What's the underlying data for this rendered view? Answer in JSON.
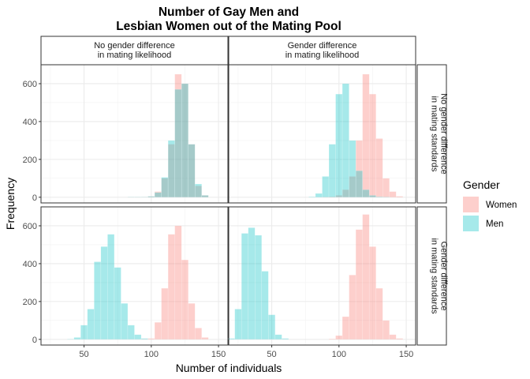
{
  "chart_data": {
    "type": "bar",
    "chart_kind": "faceted histogram",
    "title_lines": [
      "Number of Gay Men and",
      "Lesbian Women out of the Mating Pool"
    ],
    "xlabel": "Number of individuals",
    "ylabel": "Frequency",
    "xlim": [
      18,
      157
    ],
    "ylim": [
      -30,
      700
    ],
    "x_ticks": [
      50,
      100,
      150
    ],
    "y_ticks": [
      0,
      200,
      400,
      600
    ],
    "bin_width": 5,
    "grid": true,
    "legend": {
      "title": "Gender",
      "position": "right",
      "entries": [
        {
          "label": "Women",
          "color": "#F8766D"
        },
        {
          "label": "Men",
          "color": "#00BFC4"
        }
      ]
    },
    "col_strips": [
      [
        "No gender difference",
        "in mating likelihood"
      ],
      [
        "Gender difference",
        "in mating likelihood"
      ]
    ],
    "row_strips": [
      [
        "No gender difference",
        "in mating standards"
      ],
      [
        "Gender difference",
        "in mating standards"
      ]
    ],
    "panels": [
      {
        "row": 0,
        "col": 0,
        "series": [
          {
            "name": "Women",
            "bin_centers": [
              85,
              90,
              95,
              100,
              105,
              110,
              115,
              120,
              125,
              130,
              135,
              140
            ],
            "counts": [
              1,
              1,
              2,
              5,
              30,
              100,
              280,
              650,
              600,
              280,
              60,
              10
            ]
          },
          {
            "name": "Men",
            "bin_centers": [
              85,
              90,
              95,
              100,
              105,
              110,
              115,
              120,
              125,
              130,
              135,
              140
            ],
            "counts": [
              1,
              1,
              2,
              5,
              25,
              105,
              300,
              570,
              600,
              280,
              70,
              10
            ]
          }
        ]
      },
      {
        "row": 0,
        "col": 1,
        "series": [
          {
            "name": "Women",
            "bin_centers": [
              90,
              95,
              100,
              105,
              110,
              115,
              120,
              125,
              130,
              135,
              140,
              145
            ],
            "counts": [
              1,
              3,
              10,
              40,
              110,
              300,
              650,
              545,
              310,
              100,
              30,
              5
            ]
          },
          {
            "name": "Men",
            "bin_centers": [
              80,
              85,
              90,
              95,
              100,
              105,
              110,
              115,
              120,
              125,
              130,
              135
            ],
            "counts": [
              3,
              20,
              110,
              280,
              545,
              600,
              300,
              140,
              40,
              10,
              3,
              1
            ]
          }
        ]
      },
      {
        "row": 1,
        "col": 0,
        "series": [
          {
            "name": "Women",
            "bin_centers": [
              95,
              100,
              105,
              110,
              115,
              120,
              125,
              130,
              135,
              140
            ],
            "counts": [
              1,
              5,
              90,
              270,
              555,
              600,
              420,
              190,
              60,
              10
            ]
          },
          {
            "name": "Men",
            "bin_centers": [
              40,
              45,
              50,
              55,
              60,
              65,
              70,
              75,
              80,
              85,
              90,
              95
            ],
            "counts": [
              2,
              10,
              75,
              160,
              410,
              490,
              555,
              380,
              190,
              75,
              25,
              5
            ]
          }
        ]
      },
      {
        "row": 1,
        "col": 1,
        "series": [
          {
            "name": "Women",
            "bin_centers": [
              95,
              100,
              105,
              110,
              115,
              120,
              125,
              130,
              135,
              140,
              145
            ],
            "counts": [
              3,
              20,
              120,
              340,
              580,
              660,
              490,
              270,
              100,
              25,
              5
            ]
          },
          {
            "name": "Men",
            "bin_centers": [
              20,
              25,
              30,
              35,
              40,
              45,
              50,
              55,
              60
            ],
            "counts": [
              5,
              160,
              560,
              590,
              550,
              360,
              130,
              25,
              5
            ]
          }
        ]
      }
    ]
  }
}
